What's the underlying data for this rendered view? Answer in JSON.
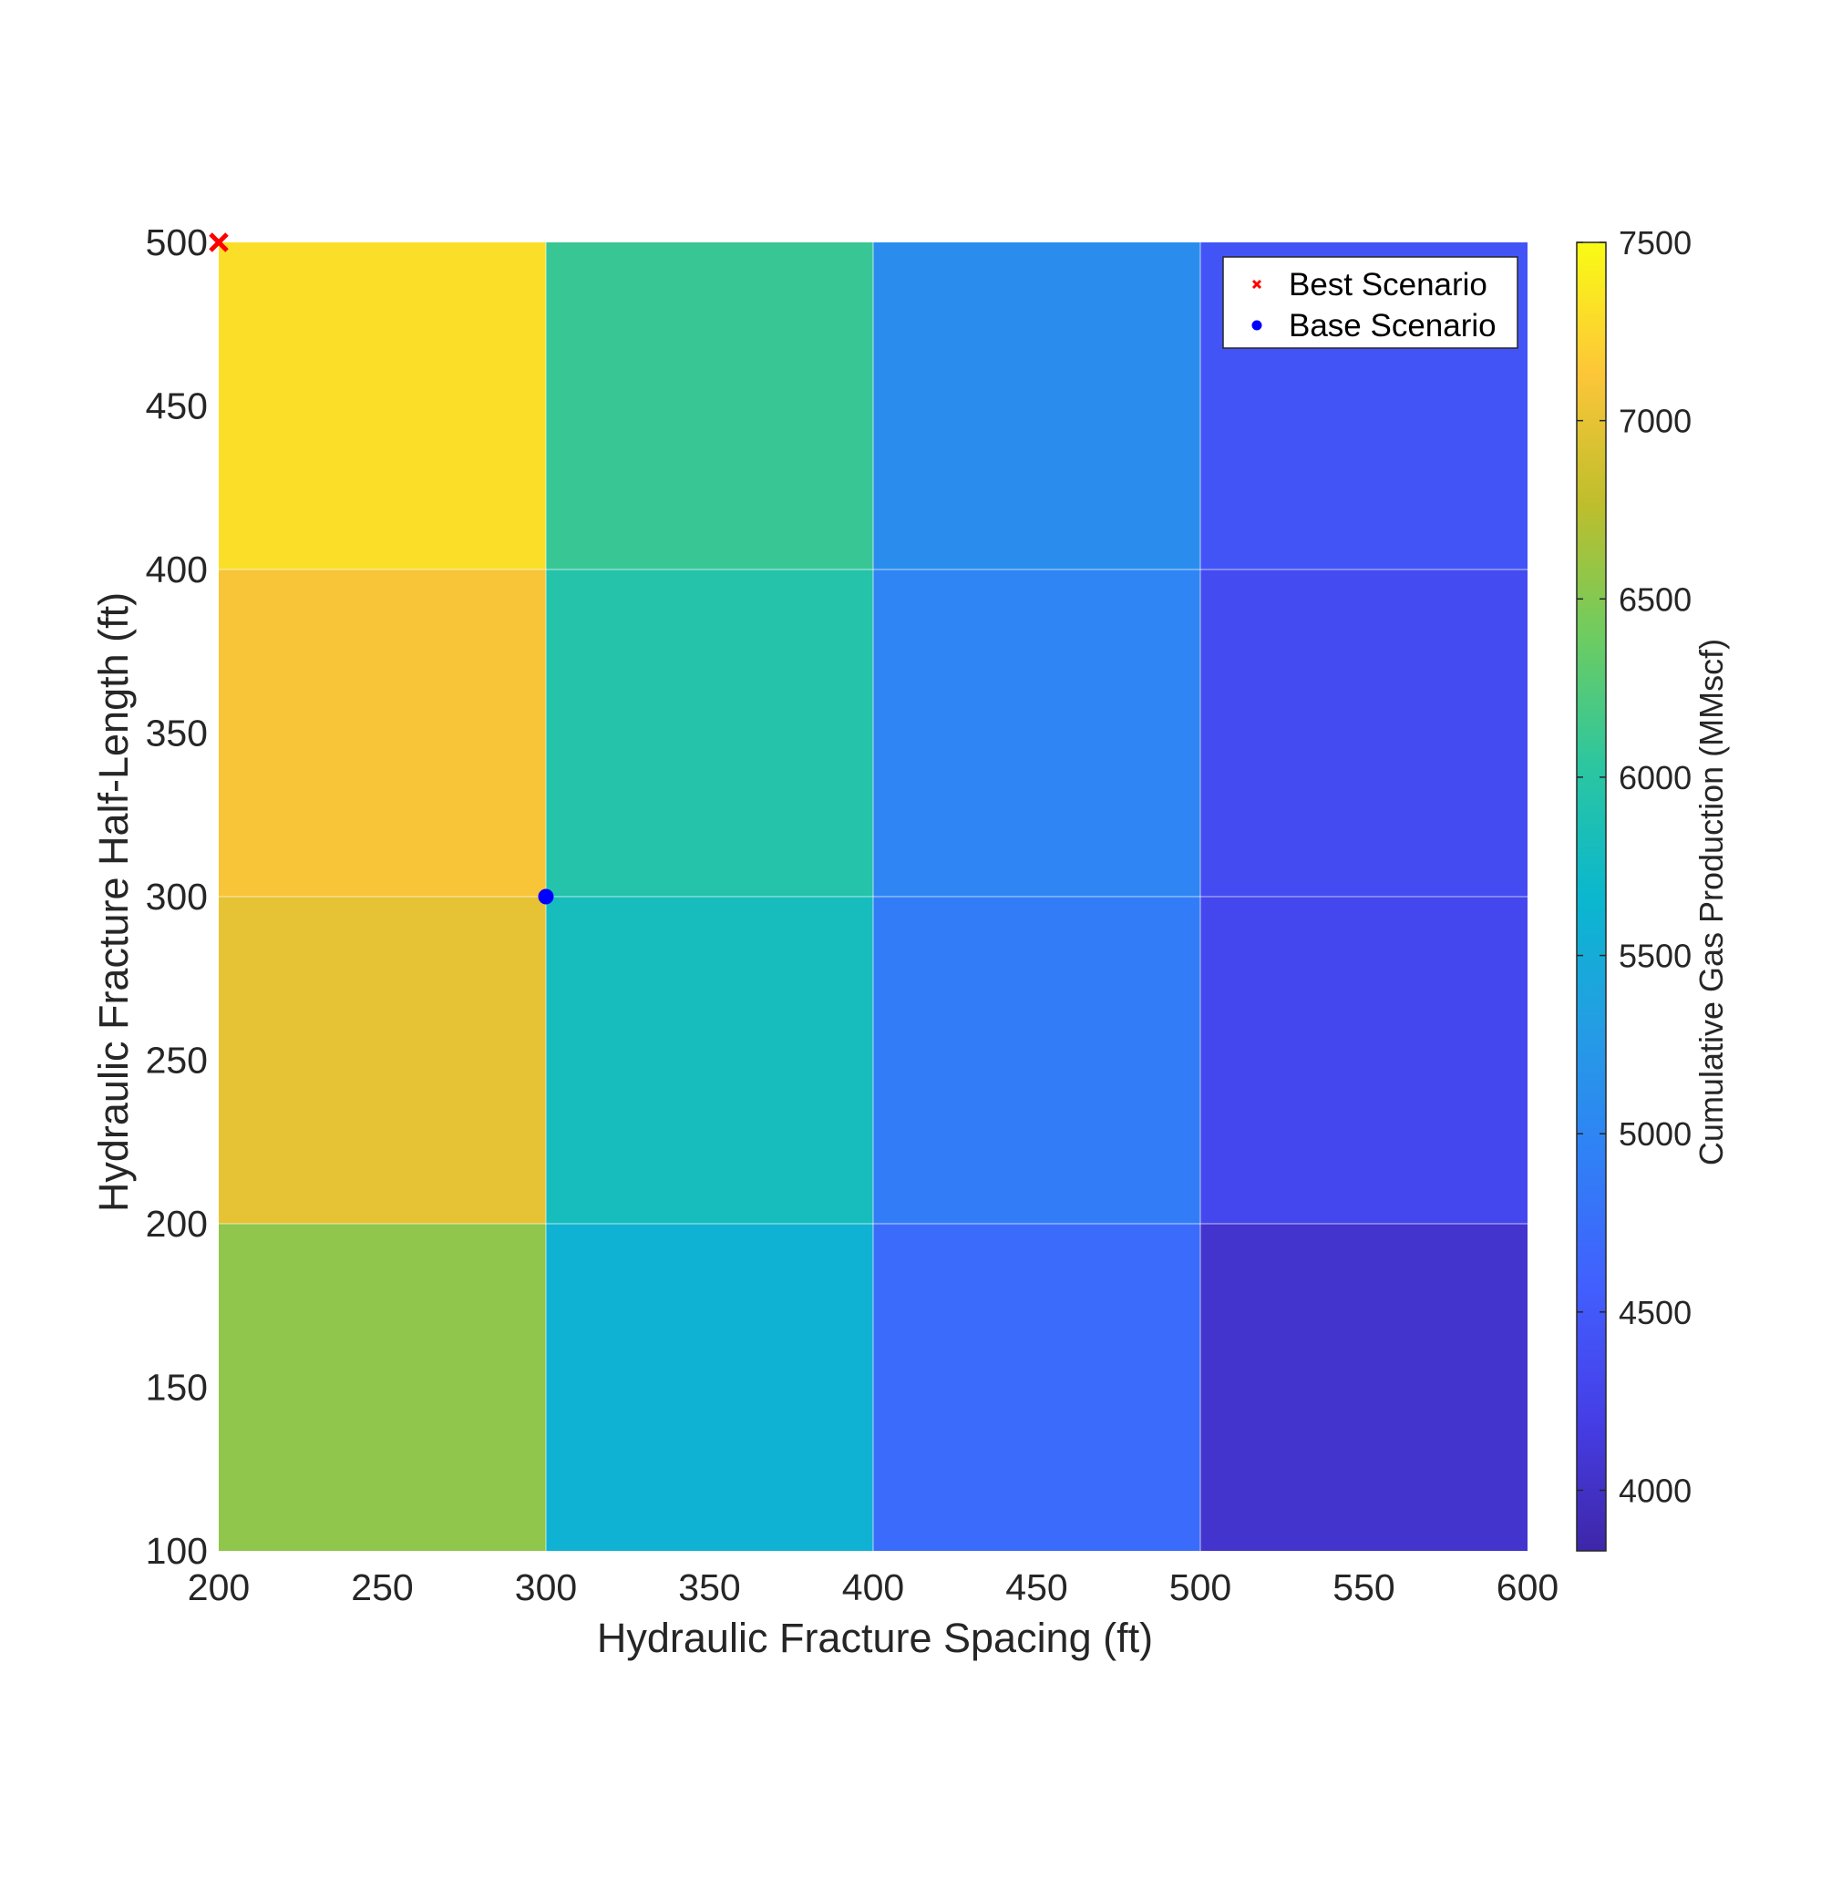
{
  "chart_data": {
    "type": "heatmap",
    "xlabel": "Hydraulic Fracture Spacing (ft)",
    "ylabel": "Hydraulic Fracture Half-Length (ft)",
    "xlim": [
      200,
      600
    ],
    "ylim": [
      100,
      500
    ],
    "xticks": [
      200,
      250,
      300,
      350,
      400,
      450,
      500,
      550,
      600
    ],
    "yticks": [
      100,
      150,
      200,
      250,
      300,
      350,
      400,
      450,
      500
    ],
    "x_edges": [
      200,
      300,
      400,
      500,
      600
    ],
    "y_edges": [
      100,
      200,
      300,
      400,
      500
    ],
    "z_rows_bottom_to_top": [
      [
        6550,
        5600,
        4700,
        4050
      ],
      [
        7000,
        5800,
        4900,
        4300
      ],
      [
        7100,
        5950,
        5000,
        4350
      ],
      [
        7300,
        6100,
        5100,
        4450
      ]
    ],
    "grid": true,
    "colorbar": {
      "label": "Cumulative Gas Production (MMscf)",
      "limits": [
        3830,
        7500
      ],
      "ticks": [
        4000,
        4500,
        5000,
        5500,
        6000,
        6500,
        7000,
        7500
      ],
      "colormap": "parula"
    },
    "markers": [
      {
        "name": "Best Scenario",
        "x": 200,
        "y": 500,
        "symbol": "x",
        "color": "#ff0000"
      },
      {
        "name": "Base Scenario",
        "x": 300,
        "y": 300,
        "symbol": "circle",
        "color": "#0000ff"
      }
    ],
    "legend": {
      "location": "top-right",
      "entries": [
        "Best Scenario",
        "Base Scenario"
      ]
    }
  }
}
